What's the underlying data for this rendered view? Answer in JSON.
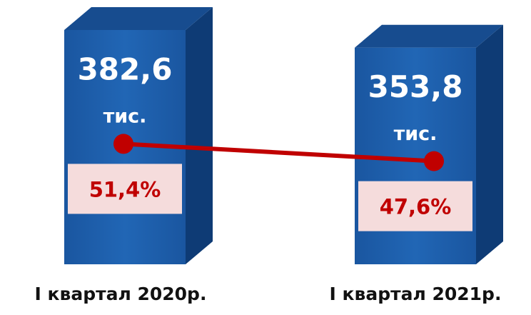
{
  "chart_data": {
    "type": "bar",
    "categories": [
      "I квартал 2020р.",
      "I квартал 2021р."
    ],
    "values": [
      382.6,
      353.8
    ],
    "value_labels": [
      "382,6",
      "353,8"
    ],
    "unit": "тис.",
    "color": "#1f5fa8",
    "line": {
      "values": [
        51.4,
        47.6
      ],
      "value_labels": [
        "51,4%",
        "47,6%"
      ],
      "color": "#c00000"
    }
  }
}
